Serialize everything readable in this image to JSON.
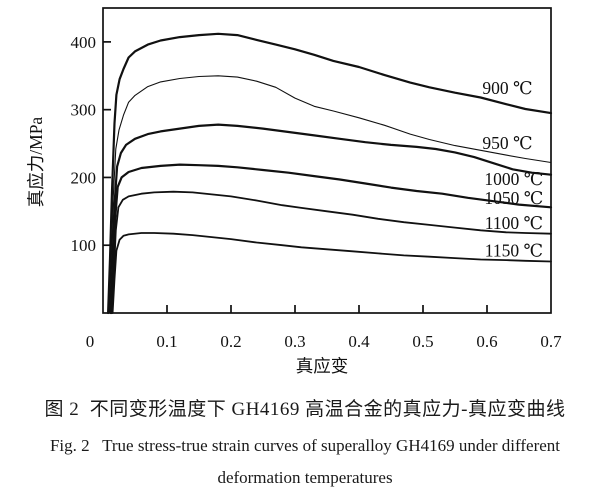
{
  "figure": {
    "caption_zh": "图 2  不同变形温度下 GH4169 高温合金的真应力-真应变曲线",
    "caption_en_line1": "Fig. 2   True stress-true strain curves of superalloy GH4169 under different",
    "caption_en_line2": "deformation temperatures"
  },
  "colors": {
    "ink": "#111111",
    "background": "#ffffff"
  },
  "chart_data": {
    "type": "line",
    "title": "",
    "xlabel": "真应变",
    "ylabel": "真应力/MPa",
    "xlim": [
      0,
      0.7
    ],
    "ylim": [
      0,
      450
    ],
    "x_ticks": [
      0,
      0.1,
      0.2,
      0.3,
      0.4,
      0.5,
      0.6,
      0.7
    ],
    "y_ticks": [
      100,
      200,
      300,
      400
    ],
    "grid": false,
    "legend_position": "inline-labels-right",
    "series": [
      {
        "name": "900 ℃",
        "temperature_C": 900,
        "stroke_width": 2.2,
        "label_pos": {
          "x": 0.632,
          "y": 332
        },
        "points": [
          [
            0.008,
            0
          ],
          [
            0.011,
            80
          ],
          [
            0.014,
            180
          ],
          [
            0.018,
            280
          ],
          [
            0.021,
            322
          ],
          [
            0.026,
            345
          ],
          [
            0.032,
            360
          ],
          [
            0.04,
            377
          ],
          [
            0.05,
            386
          ],
          [
            0.07,
            396
          ],
          [
            0.09,
            402
          ],
          [
            0.12,
            407
          ],
          [
            0.15,
            410
          ],
          [
            0.18,
            412
          ],
          [
            0.21,
            410
          ],
          [
            0.24,
            403
          ],
          [
            0.27,
            396
          ],
          [
            0.3,
            389
          ],
          [
            0.33,
            381
          ],
          [
            0.36,
            372
          ],
          [
            0.4,
            363
          ],
          [
            0.44,
            351
          ],
          [
            0.48,
            340
          ],
          [
            0.51,
            333
          ],
          [
            0.55,
            325
          ],
          [
            0.59,
            318
          ],
          [
            0.63,
            308
          ],
          [
            0.66,
            301
          ],
          [
            0.7,
            295
          ]
        ]
      },
      {
        "name": "950 ℃",
        "temperature_C": 950,
        "stroke_width": 1.1,
        "label_pos": {
          "x": 0.632,
          "y": 251
        },
        "points": [
          [
            0.01,
            0
          ],
          [
            0.013,
            80
          ],
          [
            0.016,
            170
          ],
          [
            0.02,
            242
          ],
          [
            0.025,
            270
          ],
          [
            0.032,
            292
          ],
          [
            0.04,
            311
          ],
          [
            0.05,
            321
          ],
          [
            0.07,
            334
          ],
          [
            0.09,
            341
          ],
          [
            0.12,
            346
          ],
          [
            0.15,
            349
          ],
          [
            0.18,
            350
          ],
          [
            0.21,
            348
          ],
          [
            0.24,
            342
          ],
          [
            0.27,
            333
          ],
          [
            0.3,
            317
          ],
          [
            0.33,
            305
          ],
          [
            0.36,
            298
          ],
          [
            0.4,
            288
          ],
          [
            0.44,
            277
          ],
          [
            0.48,
            264
          ],
          [
            0.51,
            256
          ],
          [
            0.55,
            247
          ],
          [
            0.59,
            240
          ],
          [
            0.63,
            233
          ],
          [
            0.66,
            228
          ],
          [
            0.7,
            222
          ]
        ]
      },
      {
        "name": "1000 ℃",
        "temperature_C": 1000,
        "stroke_width": 2.2,
        "label_pos": {
          "x": 0.642,
          "y": 198
        },
        "points": [
          [
            0.012,
            0
          ],
          [
            0.015,
            80
          ],
          [
            0.018,
            160
          ],
          [
            0.022,
            216
          ],
          [
            0.028,
            236
          ],
          [
            0.036,
            248
          ],
          [
            0.05,
            257
          ],
          [
            0.07,
            264
          ],
          [
            0.09,
            268
          ],
          [
            0.12,
            272
          ],
          [
            0.15,
            276
          ],
          [
            0.18,
            278
          ],
          [
            0.21,
            276
          ],
          [
            0.25,
            272
          ],
          [
            0.29,
            267
          ],
          [
            0.33,
            262
          ],
          [
            0.37,
            257
          ],
          [
            0.41,
            252
          ],
          [
            0.45,
            248
          ],
          [
            0.49,
            245
          ],
          [
            0.52,
            242
          ],
          [
            0.55,
            237
          ],
          [
            0.58,
            230
          ],
          [
            0.61,
            221
          ],
          [
            0.64,
            212
          ],
          [
            0.67,
            207
          ],
          [
            0.7,
            204
          ]
        ]
      },
      {
        "name": "1050 ℃",
        "temperature_C": 1050,
        "stroke_width": 2.2,
        "label_pos": {
          "x": 0.642,
          "y": 170
        },
        "points": [
          [
            0.013,
            0
          ],
          [
            0.016,
            70
          ],
          [
            0.019,
            140
          ],
          [
            0.023,
            186
          ],
          [
            0.029,
            200
          ],
          [
            0.04,
            208
          ],
          [
            0.06,
            214
          ],
          [
            0.09,
            217
          ],
          [
            0.12,
            219
          ],
          [
            0.15,
            218
          ],
          [
            0.18,
            217
          ],
          [
            0.21,
            215
          ],
          [
            0.25,
            211
          ],
          [
            0.29,
            207
          ],
          [
            0.33,
            202
          ],
          [
            0.37,
            197
          ],
          [
            0.41,
            191
          ],
          [
            0.45,
            185
          ],
          [
            0.49,
            180
          ],
          [
            0.53,
            176
          ],
          [
            0.57,
            170
          ],
          [
            0.61,
            165
          ],
          [
            0.65,
            160
          ],
          [
            0.7,
            156
          ]
        ]
      },
      {
        "name": "1100 ℃",
        "temperature_C": 1100,
        "stroke_width": 1.8,
        "label_pos": {
          "x": 0.642,
          "y": 133
        },
        "points": [
          [
            0.014,
            0
          ],
          [
            0.017,
            60
          ],
          [
            0.02,
            122
          ],
          [
            0.024,
            156
          ],
          [
            0.031,
            167
          ],
          [
            0.04,
            172
          ],
          [
            0.06,
            176
          ],
          [
            0.08,
            178
          ],
          [
            0.11,
            179
          ],
          [
            0.14,
            178
          ],
          [
            0.17,
            175
          ],
          [
            0.2,
            172
          ],
          [
            0.24,
            166
          ],
          [
            0.28,
            159
          ],
          [
            0.31,
            155
          ],
          [
            0.35,
            150
          ],
          [
            0.39,
            145
          ],
          [
            0.43,
            139
          ],
          [
            0.47,
            134
          ],
          [
            0.51,
            130
          ],
          [
            0.55,
            126
          ],
          [
            0.59,
            122
          ],
          [
            0.63,
            119
          ],
          [
            0.66,
            118
          ],
          [
            0.7,
            117
          ]
        ]
      },
      {
        "name": "1150 ℃",
        "temperature_C": 1150,
        "stroke_width": 1.8,
        "label_pos": {
          "x": 0.642,
          "y": 92
        },
        "points": [
          [
            0.015,
            0
          ],
          [
            0.018,
            50
          ],
          [
            0.021,
            92
          ],
          [
            0.026,
            108
          ],
          [
            0.032,
            114
          ],
          [
            0.04,
            116
          ],
          [
            0.06,
            118
          ],
          [
            0.08,
            118
          ],
          [
            0.11,
            117
          ],
          [
            0.14,
            115
          ],
          [
            0.17,
            112
          ],
          [
            0.2,
            109
          ],
          [
            0.24,
            104
          ],
          [
            0.28,
            100
          ],
          [
            0.31,
            97
          ],
          [
            0.35,
            94
          ],
          [
            0.39,
            91
          ],
          [
            0.43,
            88
          ],
          [
            0.47,
            85
          ],
          [
            0.51,
            83
          ],
          [
            0.55,
            81
          ],
          [
            0.59,
            79
          ],
          [
            0.63,
            78
          ],
          [
            0.66,
            77
          ],
          [
            0.7,
            76
          ]
        ]
      }
    ]
  }
}
